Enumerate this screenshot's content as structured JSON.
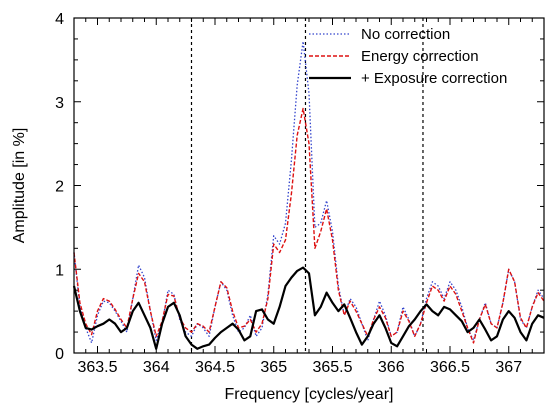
{
  "chart_data": {
    "type": "line",
    "title": "",
    "xlabel": "Frequency [cycles/year]",
    "ylabel": "Amplitude [in %]",
    "xlim": [
      363.3,
      367.3
    ],
    "ylim": [
      0,
      4
    ],
    "x_ticks": [
      363.5,
      364,
      364.5,
      365,
      365.5,
      366,
      366.5,
      367
    ],
    "x_tick_labels": [
      "363.5",
      "364",
      "364.5",
      "365",
      "365.5",
      "366",
      "366.5",
      "367"
    ],
    "y_ticks": [
      0,
      1,
      2,
      3,
      4
    ],
    "y_tick_labels": [
      "0",
      "1",
      "2",
      "3",
      "4"
    ],
    "vertical_dashed_lines": [
      364.3,
      365.27,
      366.27
    ],
    "legend_position": "top-right",
    "grid": false,
    "series": [
      {
        "name": "No correction",
        "color": "#3344cc",
        "style": "dotted",
        "x": [
          363.3,
          363.35,
          363.4,
          363.45,
          363.5,
          363.55,
          363.6,
          363.65,
          363.7,
          363.75,
          363.8,
          363.85,
          363.9,
          363.95,
          364.0,
          364.05,
          364.1,
          364.15,
          364.2,
          364.25,
          364.3,
          364.35,
          364.4,
          364.45,
          364.5,
          364.55,
          364.6,
          364.65,
          364.7,
          364.75,
          364.8,
          364.85,
          364.9,
          364.95,
          365.0,
          365.05,
          365.1,
          365.15,
          365.2,
          365.25,
          365.3,
          365.35,
          365.4,
          365.45,
          365.5,
          365.55,
          365.6,
          365.65,
          365.7,
          365.75,
          365.8,
          365.85,
          365.9,
          365.95,
          366.0,
          366.05,
          366.1,
          366.15,
          366.2,
          366.25,
          366.3,
          366.35,
          366.4,
          366.45,
          366.5,
          366.55,
          366.6,
          366.65,
          366.7,
          366.75,
          366.8,
          366.85,
          366.9,
          366.95,
          367.0,
          367.05,
          367.1,
          367.15,
          367.2,
          367.25,
          367.3
        ],
        "y": [
          1.2,
          0.55,
          0.3,
          0.12,
          0.45,
          0.62,
          0.6,
          0.5,
          0.38,
          0.25,
          0.65,
          1.05,
          0.9,
          0.5,
          0.15,
          0.35,
          0.75,
          0.7,
          0.4,
          0.25,
          0.2,
          0.35,
          0.3,
          0.2,
          0.55,
          0.85,
          0.75,
          0.45,
          0.25,
          0.3,
          0.45,
          0.2,
          0.3,
          0.7,
          1.4,
          1.3,
          1.55,
          2.3,
          3.2,
          3.72,
          3.1,
          1.5,
          1.55,
          1.82,
          1.45,
          0.8,
          0.45,
          0.65,
          0.55,
          0.35,
          0.15,
          0.4,
          0.62,
          0.45,
          0.2,
          0.25,
          0.55,
          0.4,
          0.2,
          0.35,
          0.65,
          0.85,
          0.8,
          0.65,
          0.85,
          0.75,
          0.55,
          0.3,
          0.15,
          0.4,
          0.6,
          0.35,
          0.3,
          0.6,
          1.0,
          0.85,
          0.4,
          0.3,
          0.55,
          0.75,
          0.65
        ]
      },
      {
        "name": "Energy correction",
        "color": "#dd1111",
        "style": "dashed",
        "x": [
          363.3,
          363.35,
          363.4,
          363.45,
          363.5,
          363.55,
          363.6,
          363.65,
          363.7,
          363.75,
          363.8,
          363.85,
          363.9,
          363.95,
          364.0,
          364.05,
          364.1,
          364.15,
          364.2,
          364.25,
          364.3,
          364.35,
          364.4,
          364.45,
          364.5,
          364.55,
          364.6,
          364.65,
          364.7,
          364.75,
          364.8,
          364.85,
          364.9,
          364.95,
          365.0,
          365.05,
          365.1,
          365.15,
          365.2,
          365.25,
          365.3,
          365.35,
          365.4,
          365.45,
          365.5,
          365.55,
          365.6,
          365.65,
          365.7,
          365.75,
          365.8,
          365.85,
          365.9,
          365.95,
          366.0,
          366.05,
          366.1,
          366.15,
          366.2,
          366.25,
          366.3,
          366.35,
          366.4,
          366.45,
          366.5,
          366.55,
          366.6,
          366.65,
          366.7,
          366.75,
          366.8,
          366.85,
          366.9,
          366.95,
          367.0,
          367.05,
          367.1,
          367.15,
          367.2,
          367.25,
          367.3
        ],
        "y": [
          1.2,
          0.6,
          0.35,
          0.22,
          0.5,
          0.65,
          0.62,
          0.52,
          0.4,
          0.3,
          0.65,
          0.95,
          0.85,
          0.5,
          0.2,
          0.38,
          0.7,
          0.68,
          0.42,
          0.3,
          0.25,
          0.35,
          0.32,
          0.25,
          0.55,
          0.85,
          0.78,
          0.5,
          0.3,
          0.32,
          0.4,
          0.25,
          0.35,
          0.65,
          1.3,
          1.2,
          1.35,
          1.9,
          2.6,
          2.92,
          2.5,
          1.25,
          1.45,
          1.72,
          1.35,
          0.75,
          0.45,
          0.62,
          0.5,
          0.35,
          0.2,
          0.4,
          0.55,
          0.42,
          0.2,
          0.25,
          0.5,
          0.38,
          0.2,
          0.35,
          0.6,
          0.8,
          0.75,
          0.62,
          0.8,
          0.7,
          0.5,
          0.3,
          0.12,
          0.4,
          0.58,
          0.35,
          0.3,
          0.6,
          1.0,
          0.85,
          0.42,
          0.3,
          0.55,
          0.72,
          0.62
        ]
      },
      {
        "name": "+ Exposure correction",
        "color": "#000000",
        "style": "solid",
        "x": [
          363.3,
          363.35,
          363.4,
          363.45,
          363.5,
          363.55,
          363.6,
          363.65,
          363.7,
          363.75,
          363.8,
          363.85,
          363.9,
          363.95,
          364.0,
          364.05,
          364.1,
          364.15,
          364.2,
          364.25,
          364.3,
          364.35,
          364.4,
          364.45,
          364.5,
          364.55,
          364.6,
          364.65,
          364.7,
          364.75,
          364.8,
          364.85,
          364.9,
          364.95,
          365.0,
          365.05,
          365.1,
          365.15,
          365.2,
          365.25,
          365.3,
          365.35,
          365.4,
          365.45,
          365.5,
          365.55,
          365.6,
          365.65,
          365.7,
          365.75,
          365.8,
          365.85,
          365.9,
          365.95,
          366.0,
          366.05,
          366.1,
          366.15,
          366.2,
          366.25,
          366.3,
          366.35,
          366.4,
          366.45,
          366.5,
          366.55,
          366.6,
          366.65,
          366.7,
          366.75,
          366.8,
          366.85,
          366.9,
          366.95,
          367.0,
          367.05,
          367.1,
          367.15,
          367.2,
          367.25,
          367.3
        ],
        "y": [
          0.8,
          0.5,
          0.3,
          0.28,
          0.32,
          0.35,
          0.4,
          0.35,
          0.25,
          0.3,
          0.5,
          0.6,
          0.45,
          0.3,
          0.05,
          0.35,
          0.55,
          0.6,
          0.45,
          0.2,
          0.1,
          0.05,
          0.08,
          0.1,
          0.18,
          0.25,
          0.3,
          0.35,
          0.28,
          0.15,
          0.2,
          0.5,
          0.52,
          0.4,
          0.35,
          0.55,
          0.8,
          0.9,
          0.98,
          1.02,
          0.95,
          0.45,
          0.55,
          0.72,
          0.6,
          0.5,
          0.58,
          0.42,
          0.25,
          0.1,
          0.2,
          0.35,
          0.45,
          0.3,
          0.12,
          0.08,
          0.2,
          0.32,
          0.4,
          0.5,
          0.58,
          0.5,
          0.45,
          0.55,
          0.52,
          0.45,
          0.38,
          0.25,
          0.3,
          0.4,
          0.28,
          0.15,
          0.2,
          0.4,
          0.5,
          0.42,
          0.25,
          0.15,
          0.35,
          0.45,
          0.42
        ]
      }
    ]
  }
}
